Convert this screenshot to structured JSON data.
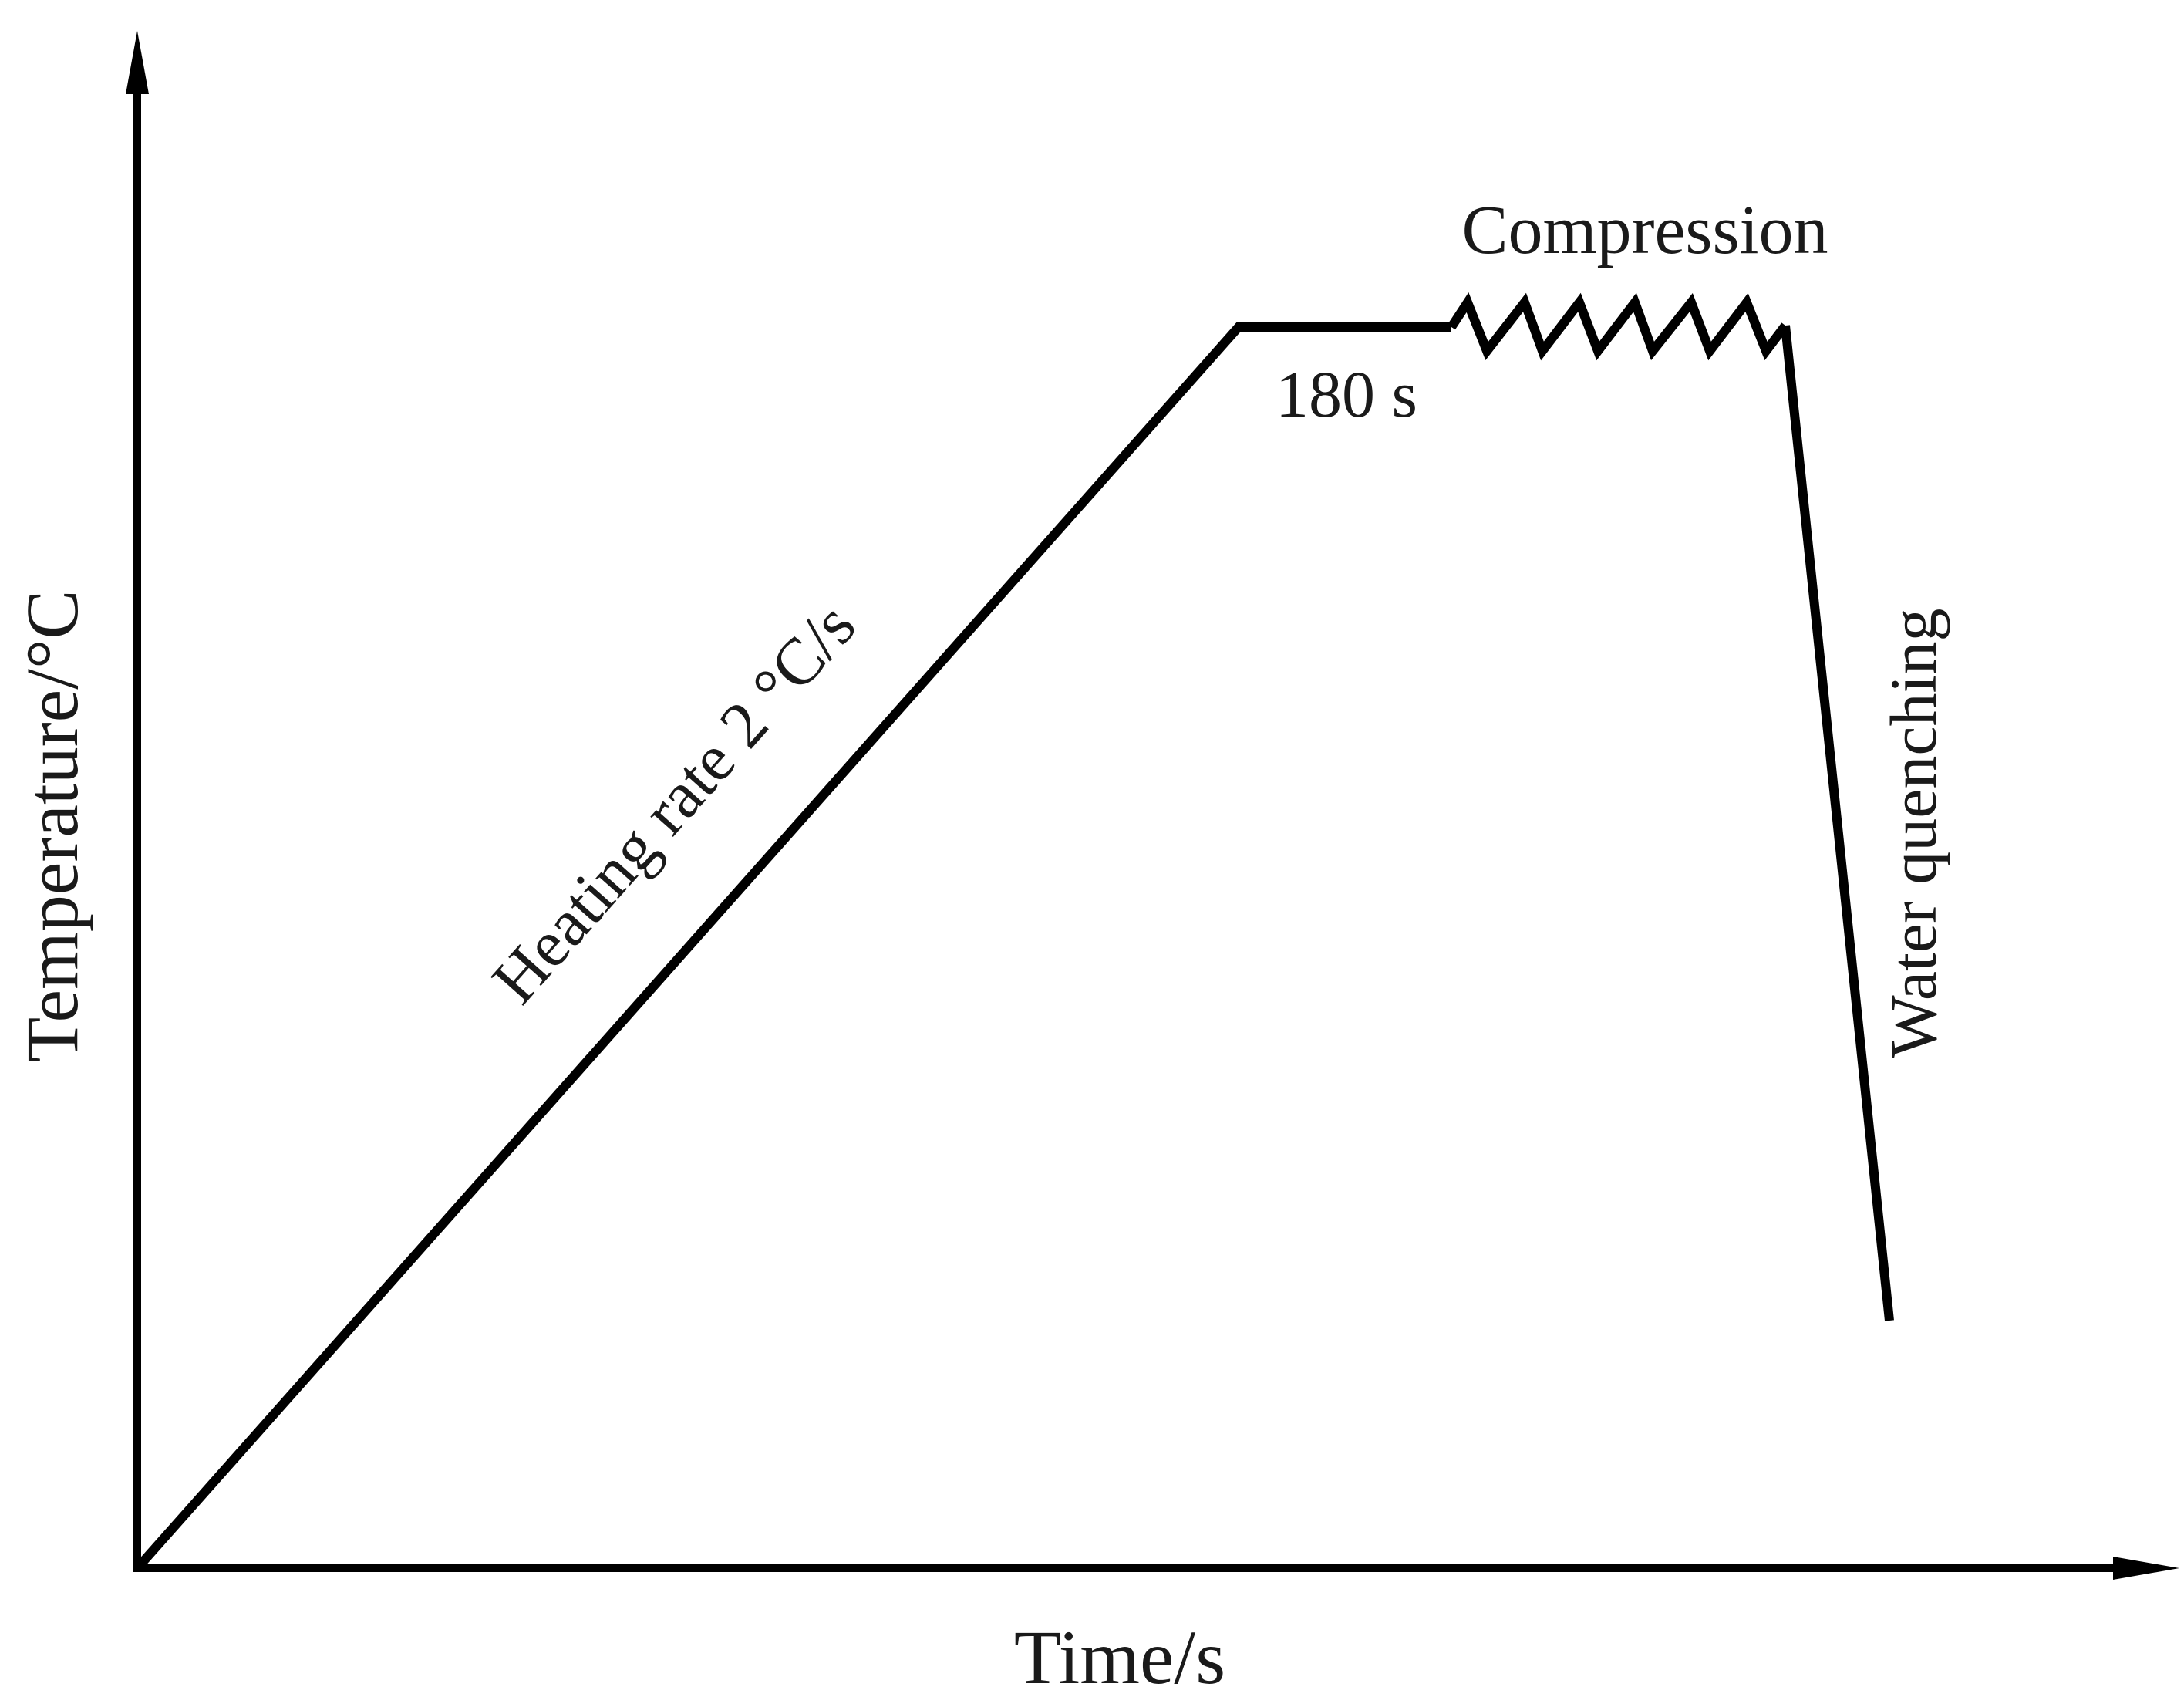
{
  "diagram": {
    "x_axis_label": "Time/s",
    "y_axis_label": "Temperature/°C",
    "annotations": {
      "heating": "Heating rate 2 °C/s",
      "hold": "180 s",
      "compression": "Compression",
      "quench": "Water quenching"
    },
    "colors": {
      "line": "#000000",
      "text": "#1a1a1a"
    }
  }
}
